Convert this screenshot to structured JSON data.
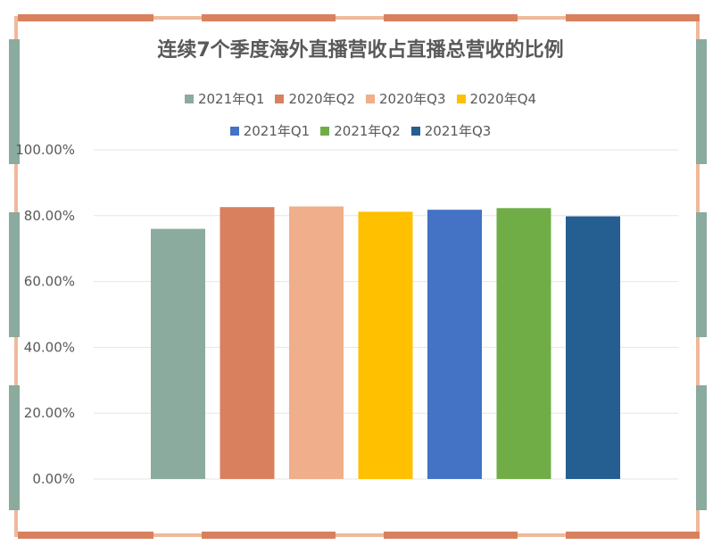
{
  "chart_data": {
    "type": "bar",
    "title": "连续7个季度海外直播营收占直播总营收的比例",
    "categories": [
      "2021年Q1",
      "2020年Q2",
      "2020年Q3",
      "2020年Q4",
      "2021年Q1",
      "2021年Q2",
      "2021年Q3"
    ],
    "values": [
      0.76,
      0.826,
      0.828,
      0.812,
      0.818,
      0.823,
      0.798
    ],
    "colors": [
      "#8aab9e",
      "#d9805f",
      "#f0ae8a",
      "#ffc000",
      "#4472c4",
      "#70ad47",
      "#255e91"
    ],
    "ylim": [
      0,
      1
    ],
    "yticks": [
      0,
      0.2,
      0.4,
      0.6,
      0.8,
      1.0
    ],
    "ytick_labels": [
      "0.00%",
      "20.00%",
      "40.00%",
      "60.00%",
      "80.00%",
      "100.00%"
    ],
    "grid": true,
    "legend_position": "top"
  }
}
